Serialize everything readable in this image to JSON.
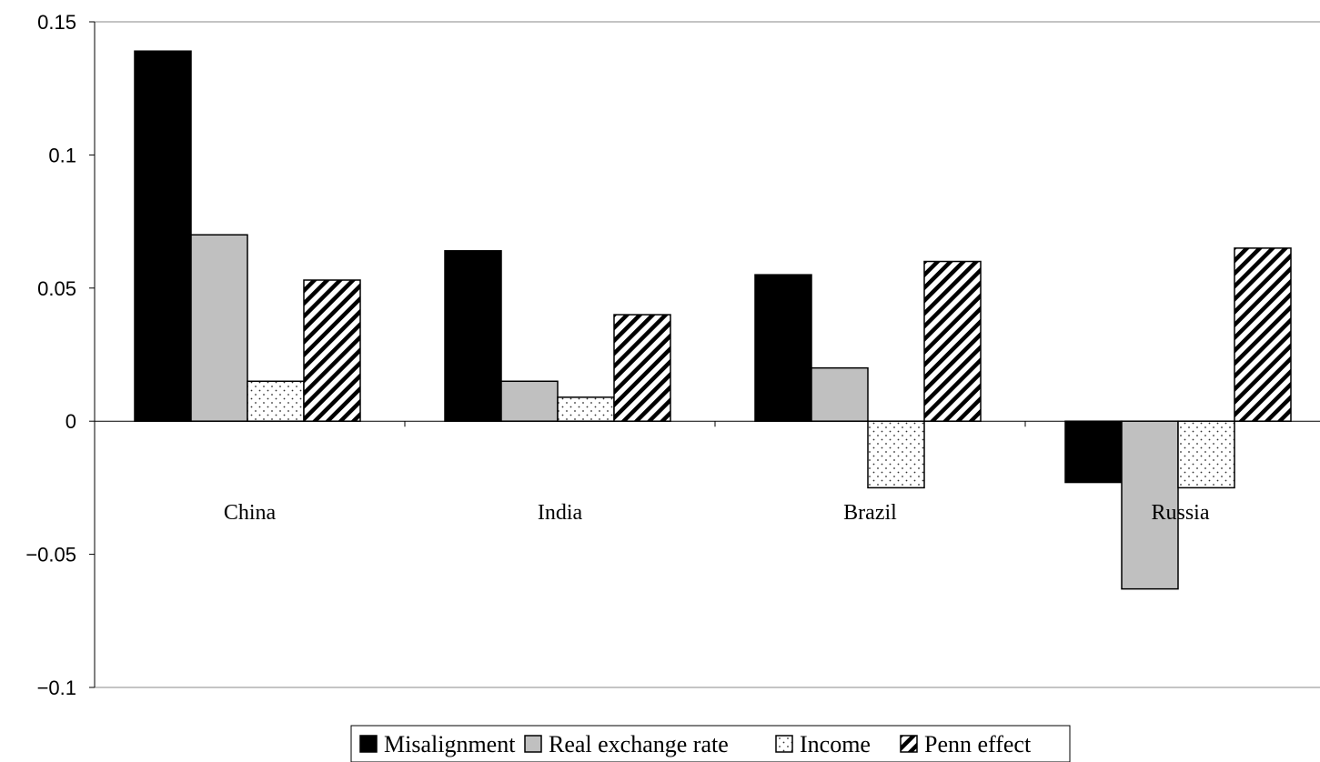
{
  "chart_data": {
    "type": "bar",
    "categories": [
      "China",
      "India",
      "Brazil",
      "Russia"
    ],
    "series": [
      {
        "name": "Misalignment",
        "values": [
          0.139,
          0.064,
          0.055,
          -0.023
        ],
        "color": "#000000",
        "pattern": "solid"
      },
      {
        "name": "Real exchange rate",
        "values": [
          0.07,
          0.015,
          0.02,
          -0.063
        ],
        "color": "#c0c0c0",
        "pattern": "solid"
      },
      {
        "name": "Income",
        "values": [
          0.015,
          0.009,
          -0.025,
          -0.025
        ],
        "color": "#ffffff",
        "pattern": "dots"
      },
      {
        "name": "Penn effect",
        "values": [
          0.053,
          0.04,
          0.06,
          0.065
        ],
        "color": "#ffffff",
        "pattern": "hatch"
      }
    ],
    "yticks": [
      "0.15",
      "0.1",
      "0.05",
      "0",
      "−0.05",
      "−0.1"
    ],
    "ytick_values": [
      0.15,
      0.1,
      0.05,
      0,
      -0.05,
      -0.1
    ],
    "ylim": [
      -0.1,
      0.15
    ],
    "title": "",
    "xlabel": "",
    "ylabel": "",
    "grid": false,
    "legend_position": "bottom-center"
  }
}
